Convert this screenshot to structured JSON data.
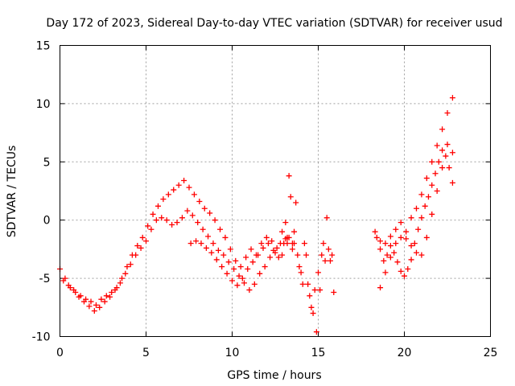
{
  "chart_data": {
    "type": "scatter",
    "title": "Day 172 of 2023, Sidereal Day-to-day VTEC variation (SDTVAR) for receiver usud",
    "xlabel": "GPS time / hours",
    "ylabel": "SDTVAR / TECUs",
    "xlim": [
      0,
      25
    ],
    "ylim": [
      -10,
      15
    ],
    "xticks": [
      "0",
      "5",
      "10",
      "15",
      "20",
      "25"
    ],
    "yticks": [
      "-10",
      "-5",
      "0",
      "5",
      "10",
      "15"
    ],
    "grid": true,
    "marker": "+",
    "color": "#ff0000",
    "series": [
      {
        "name": "segment-1",
        "x": [
          0.0,
          0.3,
          0.6,
          0.9,
          1.2,
          1.5,
          1.8,
          2.1,
          2.4,
          2.7,
          3.0,
          3.3,
          3.6,
          3.9,
          4.2,
          4.5,
          4.8,
          5.1,
          5.4,
          5.7,
          6.0,
          6.3,
          6.6,
          6.9,
          7.2,
          7.5,
          7.8,
          8.1,
          8.4,
          8.7,
          9.0,
          9.3,
          9.6,
          9.9,
          10.2,
          10.5,
          10.8,
          11.1,
          11.4,
          11.7,
          12.0,
          12.3,
          12.6,
          12.9,
          13.2,
          13.5
        ],
        "y": [
          -4.2,
          -5.0,
          -5.8,
          -6.2,
          -6.5,
          -6.8,
          -7.0,
          -7.3,
          -6.8,
          -6.5,
          -6.2,
          -5.8,
          -5.0,
          -4.0,
          -3.0,
          -2.2,
          -1.5,
          -0.5,
          0.5,
          1.2,
          1.8,
          2.2,
          2.6,
          3.0,
          3.4,
          2.8,
          2.2,
          1.6,
          1.0,
          0.6,
          0.0,
          -0.8,
          -1.5,
          -2.5,
          -3.5,
          -4.0,
          -3.2,
          -2.5,
          -3.0,
          -2.0,
          -1.5,
          -1.8,
          -2.4,
          -3.0,
          -2.0,
          -2.5
        ]
      },
      {
        "name": "segment-2",
        "x": [
          0.2,
          0.5,
          0.8,
          1.1,
          1.4,
          1.7,
          2.0,
          2.3,
          2.6,
          2.9,
          3.2,
          3.5,
          3.8,
          4.1,
          4.4,
          4.7,
          5.0,
          5.3,
          5.6,
          5.9,
          6.2,
          6.5,
          6.8,
          7.1,
          7.4,
          7.7,
          8.0,
          8.3,
          8.6,
          8.9,
          9.2,
          9.5,
          9.8,
          10.1,
          10.4,
          10.7,
          11.0,
          11.3,
          11.6,
          11.9,
          12.2,
          12.5,
          12.8,
          13.1
        ],
        "y": [
          -5.2,
          -5.6,
          -6.0,
          -6.6,
          -7.0,
          -7.4,
          -7.8,
          -7.5,
          -7.0,
          -6.6,
          -6.0,
          -5.4,
          -4.6,
          -3.8,
          -3.0,
          -2.4,
          -1.8,
          -0.8,
          0.0,
          0.2,
          0.0,
          -0.4,
          -0.2,
          0.2,
          0.8,
          0.4,
          -0.2,
          -0.8,
          -1.4,
          -2.0,
          -2.6,
          -3.0,
          -3.6,
          -4.2,
          -4.8,
          -5.4,
          -6.0,
          -5.5,
          -4.6,
          -4.0,
          -3.2,
          -2.8,
          -2.0,
          -1.6
        ]
      },
      {
        "name": "segment-3",
        "x": [
          7.6,
          7.9,
          8.2,
          8.5,
          8.8,
          9.1,
          9.4,
          9.7,
          10.0,
          10.3,
          10.6,
          10.9,
          11.2,
          11.5,
          11.8,
          12.1,
          12.4,
          12.7,
          13.0,
          13.3,
          13.6
        ],
        "y": [
          -2.0,
          -1.8,
          -2.0,
          -2.4,
          -2.8,
          -3.4,
          -4.0,
          -4.6,
          -5.2,
          -5.6,
          -5.0,
          -4.2,
          -3.6,
          -3.0,
          -2.4,
          -2.0,
          -2.6,
          -3.2,
          -2.0,
          -1.5,
          -2.0
        ]
      },
      {
        "name": "segment-4",
        "x": [
          12.9,
          13.1,
          13.3,
          13.5,
          13.7,
          13.9,
          14.1,
          14.3,
          14.5,
          14.7,
          14.9,
          15.1,
          15.3,
          15.5,
          15.7,
          15.9
        ],
        "y": [
          -1.0,
          -0.2,
          3.8,
          -2.0,
          1.5,
          -4.0,
          -5.5,
          -3.0,
          -6.5,
          -8.0,
          -9.6,
          -6.0,
          -2.0,
          0.2,
          -3.5,
          -6.2
        ]
      },
      {
        "name": "segment-5",
        "x": [
          13.2,
          13.4,
          13.6,
          13.8,
          14.0,
          14.2,
          14.4,
          14.6,
          14.8,
          15.0,
          15.2,
          15.4,
          15.6,
          15.8
        ],
        "y": [
          -1.5,
          2.0,
          -1.0,
          -3.0,
          -4.5,
          -2.0,
          -5.5,
          -7.5,
          -6.0,
          -4.5,
          -3.0,
          -3.5,
          -2.5,
          -3.0
        ]
      },
      {
        "name": "segment-6",
        "x": [
          18.4,
          18.6,
          18.8,
          19.0,
          19.2,
          19.4,
          19.6,
          19.8,
          20.0,
          20.2,
          20.4,
          20.6,
          20.8,
          21.0,
          21.2,
          21.4,
          21.6,
          21.8,
          22.0,
          22.2,
          22.4,
          22.6,
          22.8
        ],
        "y": [
          -1.5,
          -2.5,
          -3.5,
          -3.0,
          -2.2,
          -2.8,
          -3.6,
          -4.4,
          -4.8,
          -4.2,
          -3.4,
          -2.0,
          -0.8,
          0.2,
          1.2,
          2.0,
          3.0,
          4.0,
          5.0,
          6.0,
          5.5,
          4.5,
          3.2
        ]
      },
      {
        "name": "segment-7",
        "x": [
          18.6,
          18.9,
          19.2,
          19.5,
          19.8,
          20.1,
          20.4,
          20.7,
          21.0,
          21.3,
          21.6,
          21.9,
          22.2,
          22.5,
          22.8
        ],
        "y": [
          -5.8,
          -4.5,
          -3.2,
          -2.0,
          -1.5,
          -1.6,
          -2.2,
          -2.8,
          -3.0,
          -1.5,
          0.5,
          2.5,
          4.5,
          6.5,
          5.8
        ]
      },
      {
        "name": "segment-8",
        "x": [
          18.3,
          18.6,
          18.9,
          19.2,
          19.5,
          19.8,
          20.1,
          20.4,
          20.7,
          21.0,
          21.3,
          21.6,
          21.9,
          22.2,
          22.5,
          22.8
        ],
        "y": [
          -1.0,
          -1.8,
          -2.0,
          -1.4,
          -0.8,
          -0.2,
          -1.0,
          0.2,
          1.0,
          2.2,
          3.6,
          5.0,
          6.4,
          7.8,
          9.2,
          10.5
        ]
      }
    ]
  }
}
